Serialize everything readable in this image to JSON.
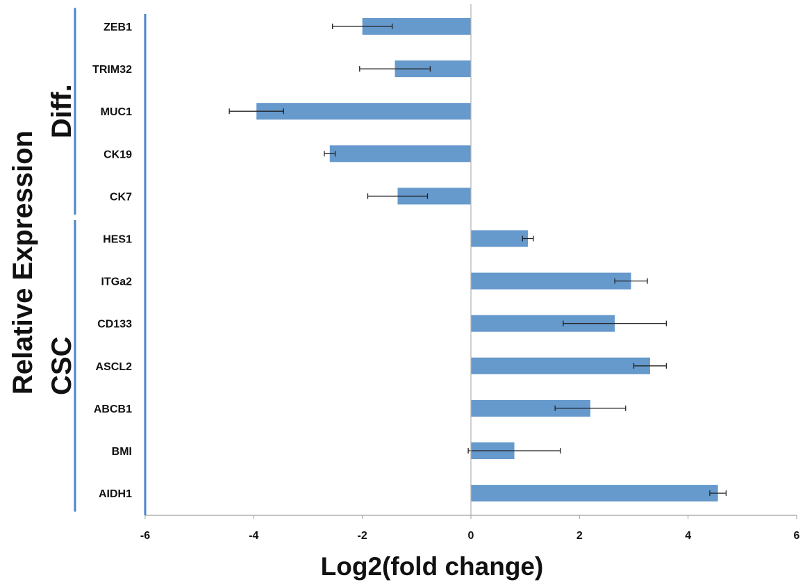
{
  "chart_data": {
    "type": "bar",
    "orientation": "horizontal",
    "title": "",
    "xlabel": "Log2(fold change)",
    "ylabel": "Relative Expression",
    "xlim": [
      -6,
      6
    ],
    "xticks": [
      -6,
      -4,
      -2,
      0,
      2,
      4,
      6
    ],
    "grid": false,
    "bar_color": "#6699cc",
    "groups": [
      {
        "name": "Diff.",
        "categories": [
          "ZEB1",
          "TRIM32",
          "MUC1",
          "CK19",
          "CK7"
        ]
      },
      {
        "name": "CSC",
        "categories": [
          "HES1",
          "ITGa2",
          "CD133",
          "ASCL2",
          "ABCB1",
          "BMI",
          "AIDH1"
        ]
      }
    ],
    "categories": [
      "ZEB1",
      "TRIM32",
      "MUC1",
      "CK19",
      "CK7",
      "HES1",
      "ITGa2",
      "CD133",
      "ASCL2",
      "ABCB1",
      "BMI",
      "AIDH1"
    ],
    "values": [
      -2.0,
      -1.4,
      -3.95,
      -2.6,
      -1.35,
      1.05,
      2.95,
      2.65,
      3.3,
      2.2,
      0.8,
      4.55
    ],
    "errors": [
      0.55,
      0.65,
      0.5,
      0.1,
      0.55,
      0.1,
      0.3,
      0.95,
      0.3,
      0.65,
      0.85,
      0.15
    ]
  }
}
